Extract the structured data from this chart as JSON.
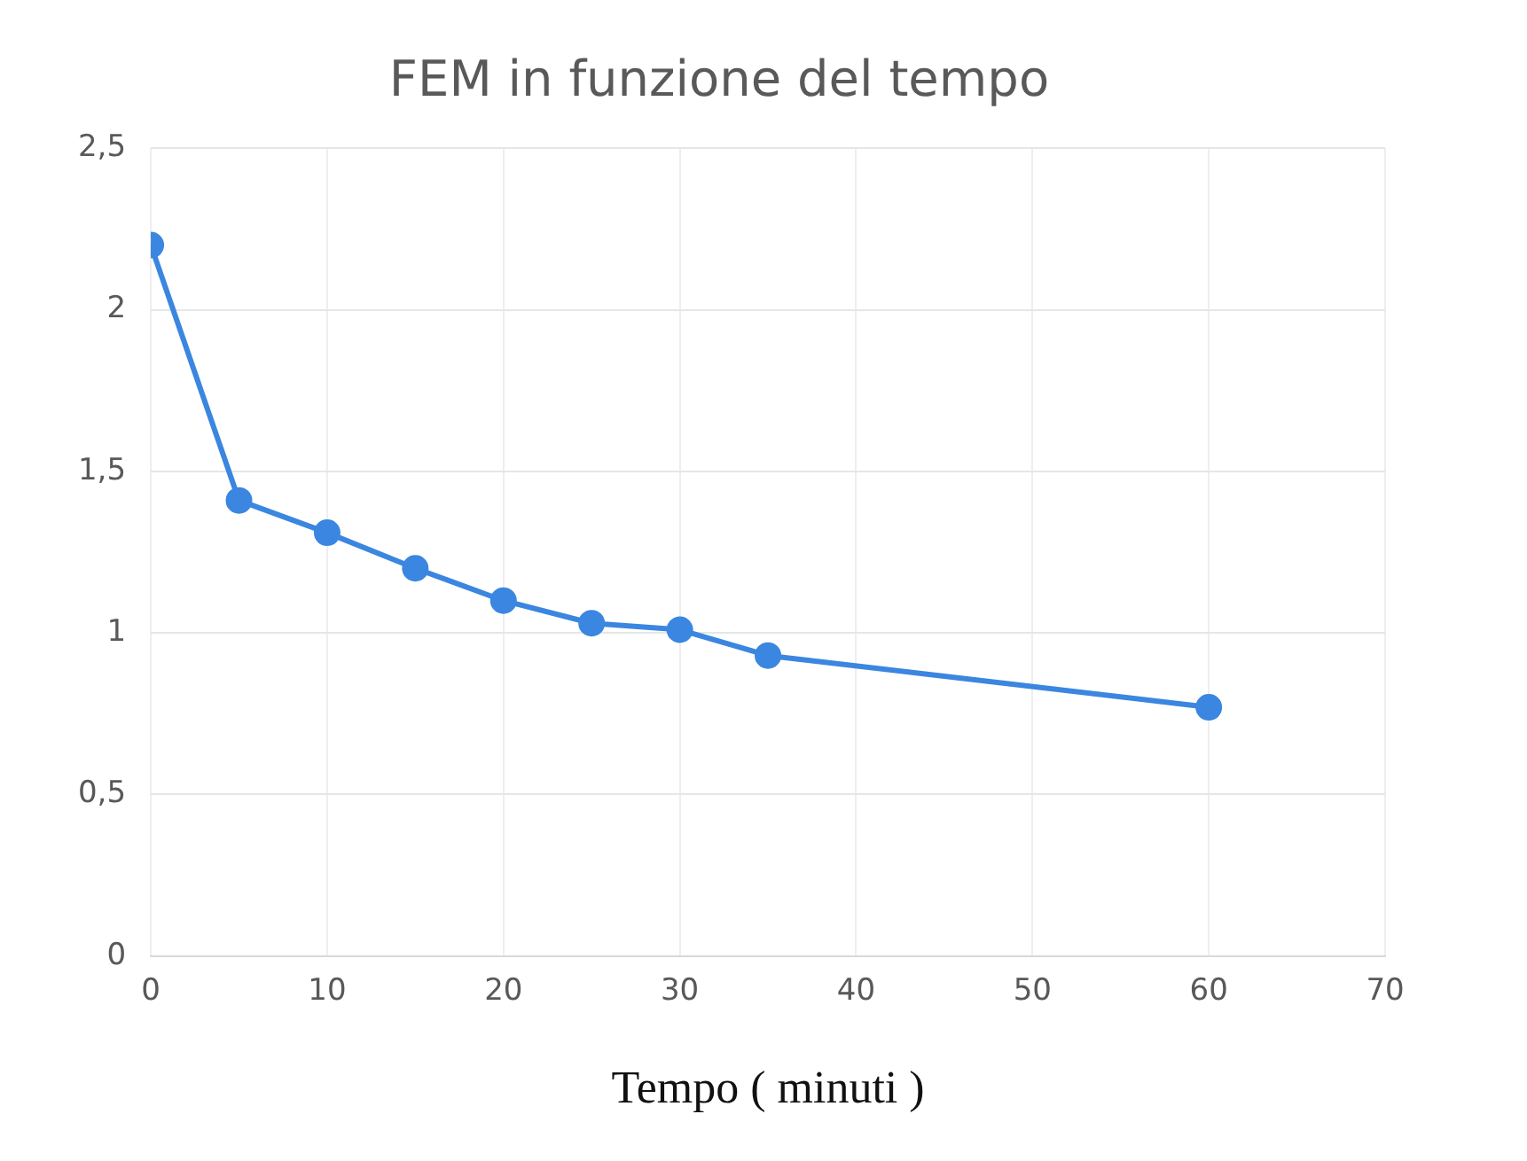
{
  "chart_data": {
    "type": "line",
    "title": "FEM in funzione del tempo",
    "xlabel": "Tempo ( minuti )",
    "x": [
      0,
      5,
      10,
      15,
      20,
      25,
      30,
      35,
      60
    ],
    "series": [
      {
        "color": "#3a86e0",
        "values": [
          2.2,
          1.41,
          1.31,
          1.2,
          1.1,
          1.03,
          1.01,
          0.93,
          0.77
        ]
      }
    ],
    "xlim": [
      0,
      70
    ],
    "xticks": [
      0,
      10,
      20,
      30,
      40,
      50,
      60,
      70
    ],
    "ylim": [
      0,
      2.5
    ],
    "yticks": [
      0,
      {
        "value": 0.5,
        "label": "0,5"
      },
      1,
      {
        "value": 1.5,
        "label": "1,5"
      },
      2,
      {
        "value": 2.5,
        "label": "2,5"
      }
    ],
    "grid": true,
    "marker": "circle",
    "line_style": "solid",
    "legend": false
  }
}
